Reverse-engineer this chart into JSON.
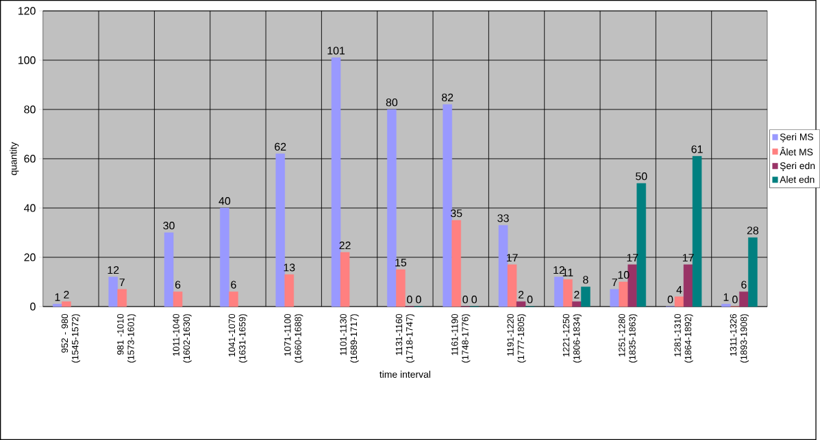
{
  "chart_data": {
    "type": "bar",
    "xlabel": "time interval",
    "ylabel": "quantity",
    "categories": [
      "952 - 980 (1545-1572)",
      "981 -1010 (1573-1601)",
      "1011-1040 (1602-1630)",
      "1041-1070 (1631-1659)",
      "1071-1100 (1660-1688)",
      "1101-1130 (1689-1717)",
      "1131-1160 (1718-1747)",
      "1161-1190 (1748-1776)",
      "1191-1220 (1777-1805)",
      "1221-1250 (1806-1834)",
      "1251-1280 (1835-1863)",
      "1281-1310 (1864-1892)",
      "1311-1326 (1893-1908)"
    ],
    "series": [
      {
        "name": "Şeri MS",
        "color": "#9999ff",
        "values": [
          1,
          12,
          30,
          40,
          62,
          101,
          80,
          82,
          33,
          12,
          7,
          0,
          1
        ]
      },
      {
        "name": "Âlet MS",
        "color": "#ff8080",
        "values": [
          2,
          7,
          6,
          6,
          13,
          22,
          15,
          35,
          17,
          11,
          10,
          4,
          0
        ]
      },
      {
        "name": "Şeri edn",
        "color": "#993366",
        "values": [
          null,
          null,
          null,
          null,
          null,
          null,
          0,
          0,
          2,
          2,
          17,
          17,
          6
        ]
      },
      {
        "name": "Alet edn",
        "color": "#008080",
        "values": [
          null,
          null,
          null,
          null,
          null,
          null,
          0,
          0,
          0,
          8,
          50,
          61,
          28
        ]
      }
    ],
    "ylim": [
      0,
      120
    ],
    "yticks": [
      0,
      20,
      40,
      60,
      80,
      100,
      120
    ],
    "grid": true,
    "legend": "right",
    "data_labels": true
  }
}
